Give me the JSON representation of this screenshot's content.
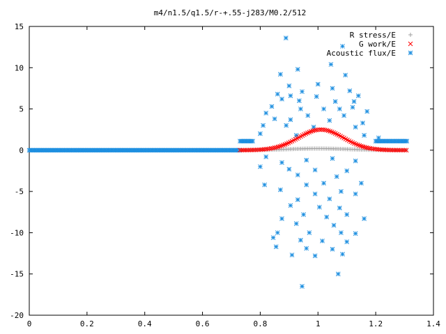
{
  "chart_data": {
    "type": "scatter",
    "title": "m4/n1.5/q1.5/r-+.55-j283/M0.2/512",
    "xlabel": "",
    "ylabel": "",
    "xlim": [
      0,
      1.4
    ],
    "ylim": [
      -20,
      15
    ],
    "x_ticks": [
      "0",
      "0.2",
      "0.4",
      "0.6",
      "0.8",
      "1",
      "1.2",
      "1.4"
    ],
    "y_ticks": [
      "15",
      "10",
      "5",
      "0",
      "-5",
      "-10",
      "-15",
      "-20"
    ],
    "grid": false,
    "legend_position": "top-right",
    "series": [
      {
        "name": "R stress/E",
        "marker": "+",
        "color": "#a0a0a0",
        "x_range": [
          0.73,
          1.31
        ],
        "profile": "small hump, max ~0.2 near x=1.0",
        "sample": [
          [
            0.74,
            0.0
          ],
          [
            0.8,
            0.05
          ],
          [
            0.9,
            0.15
          ],
          [
            1.0,
            0.2
          ],
          [
            1.1,
            0.15
          ],
          [
            1.2,
            0.05
          ],
          [
            1.3,
            0.0
          ]
        ]
      },
      {
        "name": "G work/E",
        "marker": "x",
        "color": "#ff0000",
        "x_range": [
          0.73,
          1.31
        ],
        "profile": "bell curve, peak ~2.5 at x~1.01",
        "sample": [
          [
            0.74,
            0.0
          ],
          [
            0.8,
            0.2
          ],
          [
            0.85,
            0.5
          ],
          [
            0.9,
            1.2
          ],
          [
            0.95,
            1.9
          ],
          [
            1.01,
            2.5
          ],
          [
            1.05,
            2.2
          ],
          [
            1.1,
            1.3
          ],
          [
            1.15,
            0.6
          ],
          [
            1.2,
            0.2
          ],
          [
            1.3,
            0.0
          ]
        ]
      },
      {
        "name": "Acoustic flux/E",
        "marker": "*",
        "color": "#1e8fe0",
        "profile": "dense baseline at y=0 for x in [0, 0.73]; y~1.1 for x in [0.73, 0.77] and [1.2, 1.31]; scattered between -16.5 and 13.6 for x in [0.78, 1.2]",
        "scatter_points": [
          [
            0.889,
            13.6
          ],
          [
            1.085,
            12.6
          ],
          [
            1.045,
            10.4
          ],
          [
            0.93,
            9.8
          ],
          [
            0.87,
            9.2
          ],
          [
            1.095,
            9.1
          ],
          [
            1.0,
            8.0
          ],
          [
            0.9,
            7.8
          ],
          [
            1.05,
            7.5
          ],
          [
            0.945,
            7.1
          ],
          [
            1.11,
            7.2
          ],
          [
            0.86,
            6.8
          ],
          [
            0.905,
            6.6
          ],
          [
            0.995,
            6.5
          ],
          [
            1.14,
            6.6
          ],
          [
            0.875,
            6.2
          ],
          [
            0.935,
            6.0
          ],
          [
            1.06,
            5.9
          ],
          [
            1.125,
            5.9
          ],
          [
            0.84,
            5.3
          ],
          [
            0.94,
            5.0
          ],
          [
            1.02,
            5.0
          ],
          [
            1.075,
            5.0
          ],
          [
            1.12,
            5.2
          ],
          [
            1.17,
            4.7
          ],
          [
            0.82,
            4.5
          ],
          [
            0.965,
            4.2
          ],
          [
            1.09,
            4.2
          ],
          [
            0.85,
            3.8
          ],
          [
            0.905,
            3.7
          ],
          [
            1.04,
            3.6
          ],
          [
            1.155,
            3.3
          ],
          [
            0.81,
            3.0
          ],
          [
            0.89,
            3.0
          ],
          [
            0.985,
            2.8
          ],
          [
            1.13,
            2.8
          ],
          [
            0.8,
            2.0
          ],
          [
            0.925,
            1.8
          ],
          [
            1.16,
            1.8
          ],
          [
            1.21,
            1.5
          ],
          [
            0.82,
            -0.8
          ],
          [
            0.875,
            -1.5
          ],
          [
            0.96,
            -1.2
          ],
          [
            1.05,
            -1.0
          ],
          [
            1.13,
            -1.3
          ],
          [
            0.8,
            -2.0
          ],
          [
            0.9,
            -2.3
          ],
          [
            0.99,
            -2.4
          ],
          [
            1.1,
            -2.5
          ],
          [
            0.93,
            -3.0
          ],
          [
            1.065,
            -3.2
          ],
          [
            0.815,
            -4.2
          ],
          [
            0.96,
            -4.2
          ],
          [
            1.02,
            -4.0
          ],
          [
            1.15,
            -4.0
          ],
          [
            0.87,
            -4.8
          ],
          [
            1.08,
            -5.0
          ],
          [
            0.99,
            -5.3
          ],
          [
            1.13,
            -5.3
          ],
          [
            0.93,
            -6.0
          ],
          [
            1.04,
            -5.9
          ],
          [
            0.905,
            -6.7
          ],
          [
            1.005,
            -6.9
          ],
          [
            1.075,
            -7.0
          ],
          [
            0.95,
            -7.8
          ],
          [
            1.1,
            -7.8
          ],
          [
            0.875,
            -8.3
          ],
          [
            1.03,
            -8.1
          ],
          [
            1.16,
            -8.3
          ],
          [
            0.925,
            -8.9
          ],
          [
            1.055,
            -9.1
          ],
          [
            0.86,
            -10.0
          ],
          [
            0.97,
            -10.0
          ],
          [
            1.08,
            -10.0
          ],
          [
            1.13,
            -10.1
          ],
          [
            0.845,
            -10.6
          ],
          [
            0.94,
            -10.9
          ],
          [
            1.015,
            -11.0
          ],
          [
            1.1,
            -11.1
          ],
          [
            0.855,
            -11.7
          ],
          [
            0.96,
            -11.9
          ],
          [
            1.05,
            -12.0
          ],
          [
            0.91,
            -12.7
          ],
          [
            0.99,
            -12.8
          ],
          [
            1.085,
            -12.6
          ],
          [
            1.07,
            -15.0
          ],
          [
            0.945,
            -16.5
          ]
        ]
      }
    ]
  }
}
